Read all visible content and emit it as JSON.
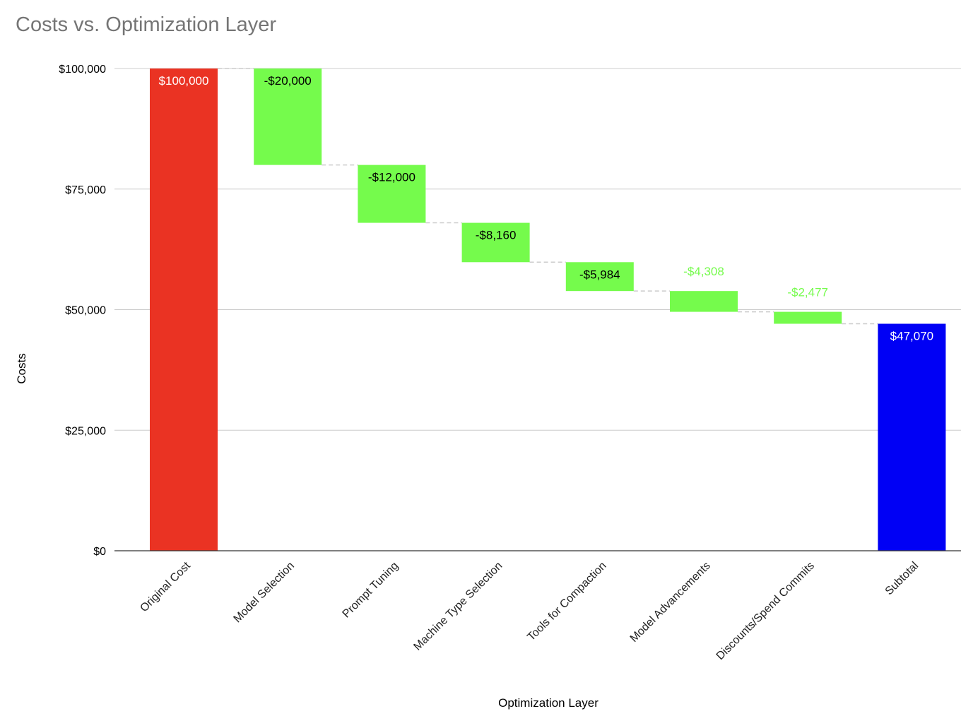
{
  "chart_data": {
    "type": "bar",
    "subtype": "waterfall",
    "title": "Costs vs. Optimization Layer",
    "xlabel": "Optimization Layer",
    "ylabel": "Costs",
    "ylim": [
      0,
      100000
    ],
    "y_ticks": [
      0,
      25000,
      50000,
      75000,
      100000
    ],
    "y_tick_labels": [
      "$0",
      "$25,000",
      "$50,000",
      "$75,000",
      "$100,000"
    ],
    "grid": true,
    "legend": "none",
    "connector_lines": "dashed",
    "categories": [
      "Original Cost",
      "Model Selection",
      "Prompt Tuning",
      "Machine Type Selection",
      "Tools for Compaction",
      "Model Advancements",
      "Discounts/Spend Commits",
      "Subtotal"
    ],
    "values": [
      100000,
      -20000,
      -12000,
      -8160,
      -5984,
      -4308,
      -2477,
      47070
    ],
    "kinds": [
      "total",
      "delta",
      "delta",
      "delta",
      "delta",
      "delta",
      "delta",
      "total"
    ],
    "data_labels": [
      "$100,000",
      "-$20,000",
      "-$12,000",
      "-$8,160",
      "-$5,984",
      "-$4,308",
      "-$2,477",
      "$47,070"
    ],
    "colors": {
      "start_total": "#ea3323",
      "decrease": "#75fb4c",
      "end_total": "#0000f5",
      "small_label": "#75fb4c",
      "grid": "#cccccc",
      "connector": "#cccccc",
      "title": "#757575"
    }
  }
}
